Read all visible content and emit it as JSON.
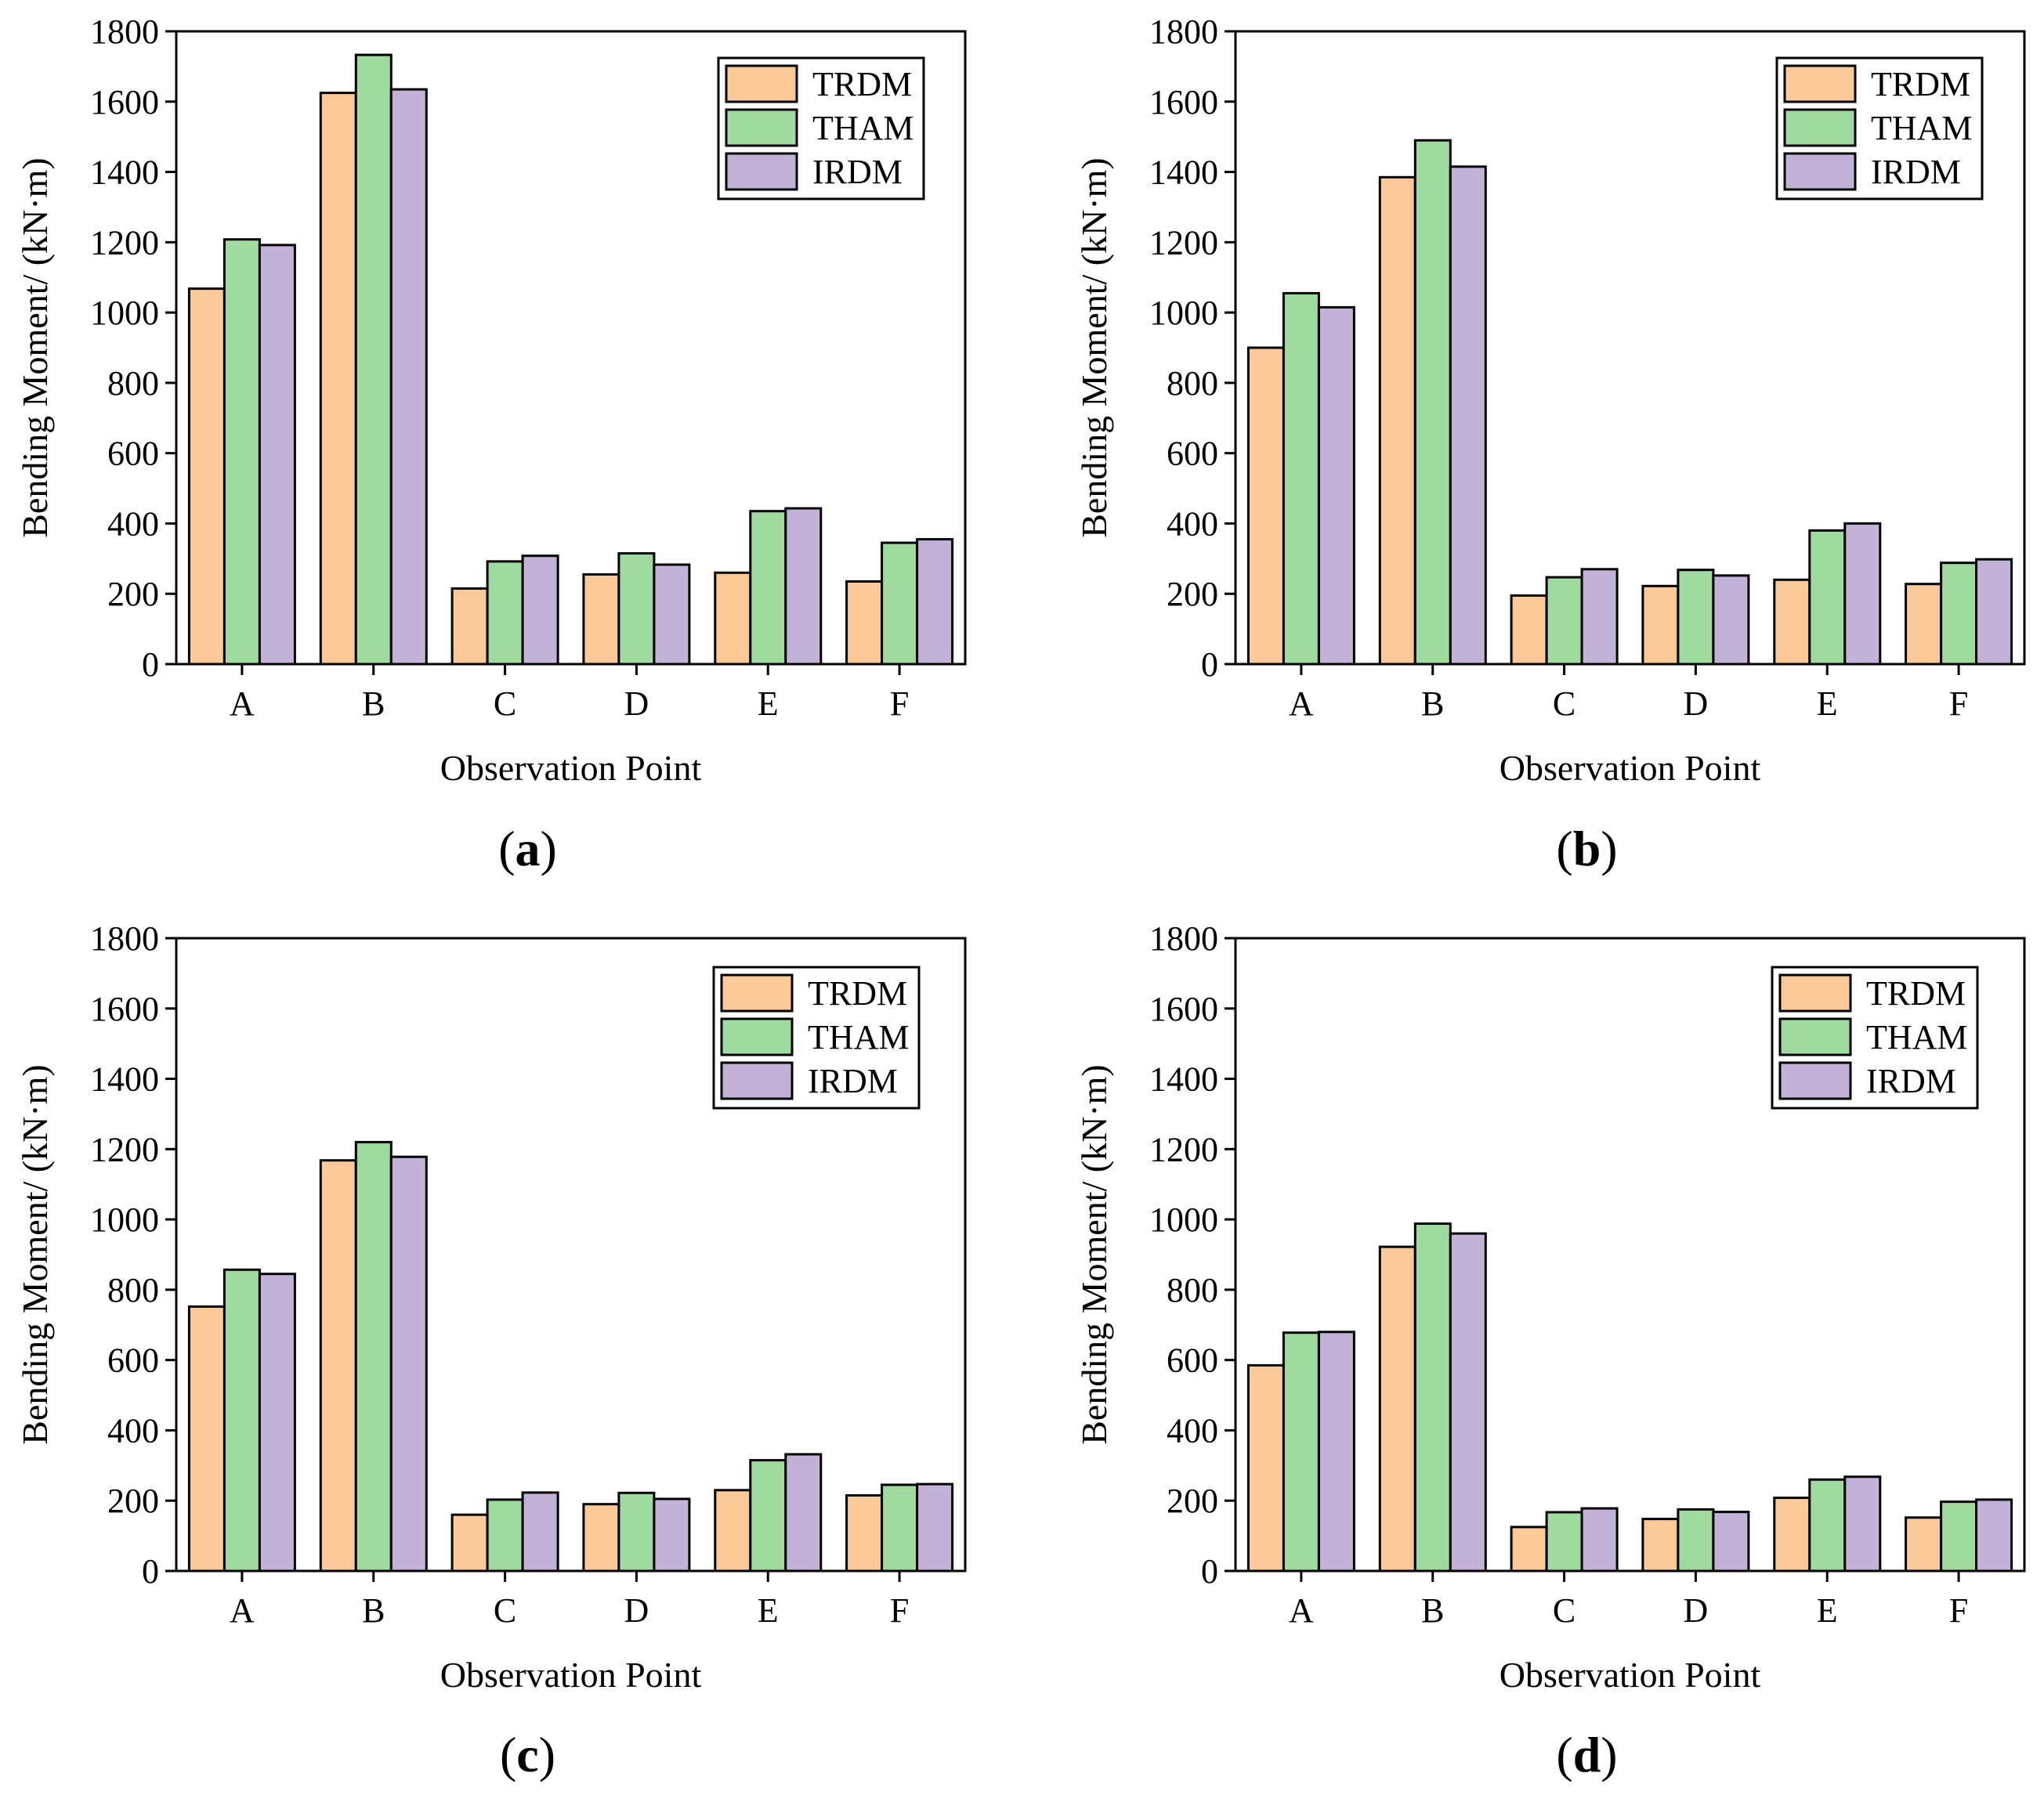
{
  "figure": {
    "ylabel": "Bending Moment/ (kN·m)",
    "xlabel": "Observation Point",
    "legend_labels": [
      "TRDM",
      "THAM",
      "IRDM"
    ],
    "colors": {
      "TRDM": "#fbc898",
      "THAM": "#9fdb9f",
      "IRDM": "#c3b2d8"
    }
  },
  "chart_data": [
    {
      "type": "bar",
      "panel": "a",
      "title": "",
      "xlabel": "Observation Point",
      "ylabel": "Bending Moment/ (kN·m)",
      "categories": [
        "A",
        "B",
        "C",
        "D",
        "E",
        "F"
      ],
      "ylim": [
        0,
        1800
      ],
      "yticks": [
        0,
        200,
        400,
        600,
        800,
        1000,
        1200,
        1400,
        1600,
        1800
      ],
      "legend_position": "top-right",
      "series": [
        {
          "name": "TRDM",
          "values": [
            1068,
            1625,
            215,
            255,
            260,
            235
          ]
        },
        {
          "name": "THAM",
          "values": [
            1208,
            1733,
            292,
            315,
            435,
            345
          ]
        },
        {
          "name": "IRDM",
          "values": [
            1192,
            1635,
            308,
            283,
            443,
            355
          ]
        }
      ]
    },
    {
      "type": "bar",
      "panel": "b",
      "title": "",
      "xlabel": "Observation Point",
      "ylabel": "Bending Moment/ (kN·m)",
      "categories": [
        "A",
        "B",
        "C",
        "D",
        "E",
        "F"
      ],
      "ylim": [
        0,
        1800
      ],
      "yticks": [
        0,
        200,
        400,
        600,
        800,
        1000,
        1200,
        1400,
        1600,
        1800
      ],
      "legend_position": "top-right",
      "series": [
        {
          "name": "TRDM",
          "values": [
            900,
            1385,
            195,
            222,
            240,
            228
          ]
        },
        {
          "name": "THAM",
          "values": [
            1055,
            1490,
            247,
            268,
            380,
            288
          ]
        },
        {
          "name": "IRDM",
          "values": [
            1015,
            1415,
            270,
            252,
            400,
            298
          ]
        }
      ]
    },
    {
      "type": "bar",
      "panel": "c",
      "title": "",
      "xlabel": "Observation Point",
      "ylabel": "Bending Moment/ (kN·m)",
      "categories": [
        "A",
        "B",
        "C",
        "D",
        "E",
        "F"
      ],
      "ylim": [
        0,
        1800
      ],
      "yticks": [
        0,
        200,
        400,
        600,
        800,
        1000,
        1200,
        1400,
        1600,
        1800
      ],
      "legend_position": "top-right",
      "series": [
        {
          "name": "TRDM",
          "values": [
            752,
            1168,
            160,
            190,
            230,
            215
          ]
        },
        {
          "name": "THAM",
          "values": [
            857,
            1220,
            203,
            222,
            315,
            245
          ]
        },
        {
          "name": "IRDM",
          "values": [
            845,
            1178,
            223,
            205,
            332,
            247
          ]
        }
      ]
    },
    {
      "type": "bar",
      "panel": "d",
      "title": "",
      "xlabel": "Observation Point",
      "ylabel": "Bending Moment/ (kN·m)",
      "categories": [
        "A",
        "B",
        "C",
        "D",
        "E",
        "F"
      ],
      "ylim": [
        0,
        1800
      ],
      "yticks": [
        0,
        200,
        400,
        600,
        800,
        1000,
        1200,
        1400,
        1600,
        1800
      ],
      "legend_position": "top-right",
      "series": [
        {
          "name": "TRDM",
          "values": [
            585,
            922,
            125,
            148,
            208,
            152
          ]
        },
        {
          "name": "THAM",
          "values": [
            678,
            988,
            167,
            175,
            260,
            197
          ]
        },
        {
          "name": "IRDM",
          "values": [
            680,
            960,
            178,
            168,
            268,
            203
          ]
        }
      ]
    }
  ],
  "panel_labels": [
    {
      "open": "(",
      "letter": "a",
      "close": ")"
    },
    {
      "open": "(",
      "letter": "b",
      "close": ")"
    },
    {
      "open": "(",
      "letter": "c",
      "close": ")"
    },
    {
      "open": "(",
      "letter": "d",
      "close": ")"
    }
  ]
}
